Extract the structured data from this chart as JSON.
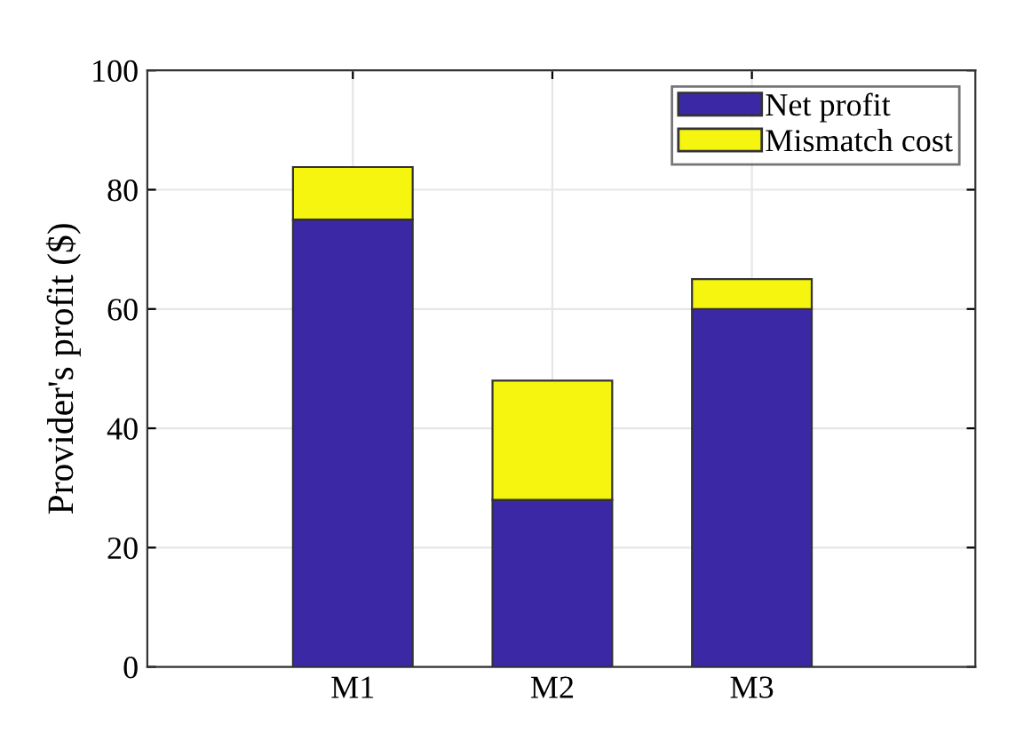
{
  "chart_data": {
    "type": "bar",
    "stacked": true,
    "ylabel": "Provider's profit ($)",
    "categories": [
      "M1",
      "M2",
      "M3"
    ],
    "series": [
      {
        "name": "Net profit",
        "color": "#3b28a4",
        "values": [
          75,
          28,
          60
        ]
      },
      {
        "name": "Mismatch cost",
        "color": "#f5f50f",
        "values": [
          8.8,
          20,
          5
        ]
      }
    ],
    "ylim": [
      0,
      100
    ],
    "yticks": [
      0,
      20,
      40,
      60,
      80,
      100
    ],
    "grid": true,
    "legend": "top right"
  }
}
